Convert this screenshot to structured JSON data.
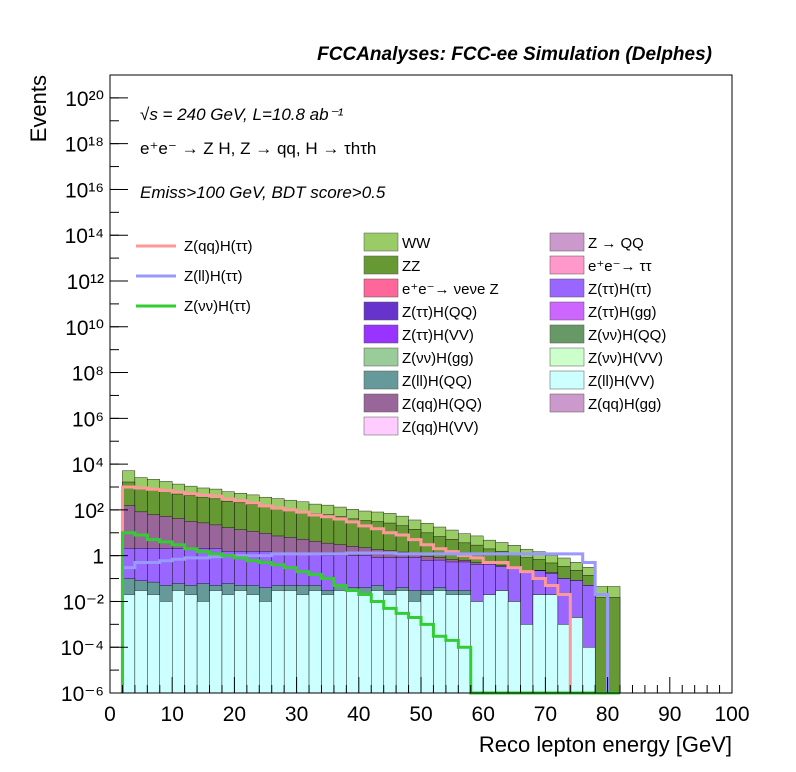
{
  "chart_data": {
    "type": "histogram",
    "title": "FCCAnalyses: FCC-ee Simulation (Delphes)",
    "annotations": [
      "√s = 240 GeV, L=10.8 ab⁻¹",
      "e⁺e⁻ → Z H, Z → qq, H → τhτh",
      "Emiss>100 GeV, BDT score>0.5"
    ],
    "xlabel": "Reco lepton energy [GeV]",
    "ylabel": "Events",
    "xlim": [
      0,
      100
    ],
    "ylim": [
      1e-06,
      1e+21
    ],
    "yscale": "log",
    "xticks": [
      "0",
      "10",
      "20",
      "30",
      "40",
      "50",
      "60",
      "70",
      "80",
      "90",
      "100"
    ],
    "yticks": [
      "10⁻⁶",
      "10⁻⁴",
      "10⁻²",
      "1",
      "10²",
      "10⁴",
      "10⁶",
      "10⁸",
      "10¹⁰",
      "10¹²",
      "10¹⁴",
      "10¹⁶",
      "10¹⁸",
      "10²⁰"
    ],
    "bin_edges_start": 2,
    "bin_width": 2,
    "stacked_total": [
      6000,
      3000,
      2500,
      2000,
      1500,
      1200,
      1000,
      900,
      700,
      600,
      500,
      400,
      350,
      300,
      250,
      200,
      180,
      150,
      120,
      100,
      90,
      80,
      60,
      40,
      30,
      20,
      15,
      10,
      8,
      5,
      4,
      3,
      2,
      1.5,
      1,
      0.8,
      0.5,
      0.3,
      0.05,
      0.05
    ],
    "stack_layers": [
      {
        "name": "Z(ll)H(VV)",
        "color": "#ccffff",
        "values": [
          0.02,
          0.03,
          0.02,
          0.01,
          0.03,
          0.02,
          0.01,
          0.03,
          0.02,
          0.03,
          0.02,
          0.01,
          0.03,
          0.03,
          0.02,
          0.03,
          0.02,
          0.03,
          0.03,
          0.02,
          0.03,
          0.02,
          0.03,
          0.01,
          0.02,
          0.03,
          0.02,
          0.02,
          0.01,
          0.02,
          0.03,
          0.01,
          0.001,
          0.02,
          0.02,
          0.001,
          0.002,
          0.0001,
          0.0,
          0.0
        ]
      },
      {
        "name": "Z(ll)H(QQ)",
        "color": "#669999",
        "values": [
          0.08,
          0.05,
          0.05,
          0.04,
          0.03,
          0.03,
          0.05,
          0.02,
          0.04,
          0.02,
          0.03,
          0.03,
          0.02,
          0.02,
          0.03,
          0.02,
          0.01,
          0.02,
          0.01,
          0.02,
          0.02,
          0.01,
          0.01,
          0.02,
          0.01,
          0.01,
          0.01,
          0.01,
          0.0,
          0.0,
          0.0,
          0.0,
          0.0,
          0.0,
          0.0,
          0.0,
          0.0,
          0.0,
          0.0,
          0.0
        ]
      },
      {
        "name": "Z(ττ)H(ττ)",
        "color": "#9966ff",
        "values": [
          2,
          2,
          2,
          2,
          2,
          2,
          2,
          2,
          1.5,
          1.5,
          1.5,
          1.5,
          1.2,
          1.2,
          1.2,
          1.2,
          1,
          1,
          1,
          1,
          0.8,
          0.8,
          0.8,
          0.8,
          0.6,
          0.6,
          0.5,
          0.5,
          0.4,
          0.4,
          0.3,
          0.3,
          0.2,
          0.2,
          0.15,
          0.1,
          0.08,
          0.05,
          0.0,
          0.0
        ]
      },
      {
        "name": "Z(qq)H(QQ)",
        "color": "#996699",
        "values": [
          150,
          80,
          60,
          50,
          40,
          30,
          25,
          20,
          15,
          12,
          10,
          8,
          6,
          5,
          4,
          3,
          2.5,
          2,
          1.5,
          1.2,
          1,
          0.8,
          0.6,
          0.4,
          0.3,
          0.2,
          0.15,
          0.1,
          0.08,
          0.05,
          0.04,
          0.03,
          0.02,
          0.01,
          0.01,
          0.0,
          0.0,
          0.0,
          0.0,
          0.0
        ]
      },
      {
        "name": "ZZ",
        "color": "#669933",
        "values": [
          1500,
          800,
          700,
          600,
          450,
          380,
          320,
          280,
          220,
          190,
          160,
          130,
          110,
          95,
          80,
          65,
          58,
          48,
          38,
          32,
          29,
          25,
          19,
          13,
          9,
          6,
          4.5,
          3,
          2.4,
          1.5,
          1.2,
          0.9,
          0.6,
          0.45,
          0.3,
          0.24,
          0.15,
          0.09,
          0.015,
          0.015
        ]
      },
      {
        "name": "WW",
        "color": "#99cc66",
        "values": [
          3500,
          1700,
          1400,
          1100,
          850,
          680,
          560,
          510,
          390,
          330,
          280,
          220,
          195,
          165,
          140,
          110,
          100,
          82,
          66,
          55,
          50,
          44,
          33,
          22,
          16,
          11,
          8,
          5.5,
          4.4,
          2.8,
          2.2,
          1.6,
          1.1,
          0.8,
          0.55,
          0.45,
          0.28,
          0.17,
          0.03,
          0.03
        ]
      }
    ],
    "line_series": [
      {
        "name": "Z(qq)H(ττ)",
        "color": "#ff9999",
        "values": [
          1000,
          900,
          800,
          700,
          600,
          500,
          450,
          400,
          300,
          250,
          200,
          150,
          120,
          100,
          80,
          60,
          50,
          40,
          30,
          20,
          15,
          10,
          8,
          5,
          3,
          2,
          1.5,
          1,
          0.8,
          0.5,
          0.5,
          0.3,
          0.2,
          0.1,
          0.05,
          0.02,
          0.0,
          0.0,
          0.0,
          0.0
        ]
      },
      {
        "name": "Z(ll)H(ττ)",
        "color": "#9999ff",
        "values": [
          0.3,
          0.5,
          0.5,
          0.6,
          0.7,
          0.8,
          0.8,
          0.9,
          1,
          1,
          1,
          1,
          1.2,
          1.2,
          1.2,
          1.2,
          1.2,
          1.2,
          1.3,
          1.3,
          1.3,
          1.3,
          1.2,
          1.2,
          1.2,
          1.2,
          1.2,
          1.2,
          1.2,
          1.2,
          1.2,
          1.2,
          1.2,
          1.2,
          1.2,
          1.2,
          1.2,
          0.5,
          0.02,
          0.0
        ]
      },
      {
        "name": "Z(νν)H(ττ)",
        "color": "#33cc33",
        "values": [
          10,
          8,
          5,
          4,
          3,
          2,
          1.5,
          1.2,
          1,
          0.8,
          0.6,
          0.5,
          0.4,
          0.3,
          0.2,
          0.15,
          0.1,
          0.05,
          0.03,
          0.02,
          0.01,
          0.005,
          0.003,
          0.002,
          0.001,
          0.0003,
          0.0002,
          0.0001,
          0.0,
          0.0,
          0.0,
          0.0,
          0.0,
          0.0,
          0.0,
          0.0,
          0.0,
          0.0,
          0.0,
          0.0
        ]
      }
    ]
  },
  "legend_lines": [
    {
      "label": "Z(qq)H(ττ)",
      "color": "#ff9999"
    },
    {
      "label": "Z(ll)H(ττ)",
      "color": "#9999ff"
    },
    {
      "label": "Z(νν)H(ττ)",
      "color": "#33cc33"
    }
  ],
  "legend_fills": [
    {
      "label": "WW",
      "color": "#99cc66"
    },
    {
      "label": "Z → QQ",
      "color": "#cc99cc"
    },
    {
      "label": "ZZ",
      "color": "#669933"
    },
    {
      "label": "e⁺e⁻→ ττ",
      "color": "#ff99cc"
    },
    {
      "label": "e⁺e⁻→ νeνe Z",
      "color": "#ff6699"
    },
    {
      "label": "Z(ττ)H(ττ)",
      "color": "#9966ff"
    },
    {
      "label": "Z(ττ)H(QQ)",
      "color": "#6633cc"
    },
    {
      "label": "Z(ττ)H(gg)",
      "color": "#cc66ff"
    },
    {
      "label": "Z(ττ)H(VV)",
      "color": "#9933ff"
    },
    {
      "label": "Z(νν)H(QQ)",
      "color": "#669966"
    },
    {
      "label": "Z(νν)H(gg)",
      "color": "#99cc99"
    },
    {
      "label": "Z(νν)H(VV)",
      "color": "#ccffcc"
    },
    {
      "label": "Z(ll)H(QQ)",
      "color": "#669999"
    },
    {
      "label": "Z(ll)H(VV)",
      "color": "#ccffff"
    },
    {
      "label": "Z(qq)H(QQ)",
      "color": "#996699"
    },
    {
      "label": "Z(qq)H(gg)",
      "color": "#cc99cc"
    },
    {
      "label": "Z(qq)H(VV)",
      "color": "#ffccff"
    }
  ]
}
